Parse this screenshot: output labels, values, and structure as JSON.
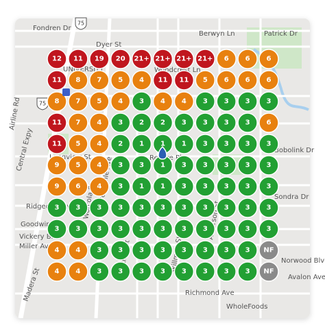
{
  "map": {
    "palette": {
      "r": "#c0161e",
      "o": "#e8810f",
      "g": "#22a033",
      "n": "#8a8a8a"
    },
    "rows": [
      [
        [
          "12",
          "r"
        ],
        [
          "11",
          "r"
        ],
        [
          "19",
          "r"
        ],
        [
          "20",
          "r"
        ],
        [
          "21+",
          "r"
        ],
        [
          "21+",
          "r"
        ],
        [
          "21+",
          "r"
        ],
        [
          "21+",
          "r"
        ],
        [
          "6",
          "o"
        ],
        [
          "6",
          "o"
        ],
        [
          "6",
          "o"
        ]
      ],
      [
        [
          "11",
          "r"
        ],
        [
          "8",
          "o"
        ],
        [
          "7",
          "o"
        ],
        [
          "5",
          "o"
        ],
        [
          "4",
          "o"
        ],
        [
          "11",
          "r"
        ],
        [
          "11",
          "r"
        ],
        [
          "5",
          "o"
        ],
        [
          "6",
          "o"
        ],
        [
          "6",
          "o"
        ],
        [
          "6",
          "o"
        ]
      ],
      [
        [
          "8",
          "o"
        ],
        [
          "7",
          "o"
        ],
        [
          "5",
          "o"
        ],
        [
          "4",
          "o"
        ],
        [
          "3",
          "g"
        ],
        [
          "4",
          "o"
        ],
        [
          "4",
          "o"
        ],
        [
          "3",
          "g"
        ],
        [
          "3",
          "g"
        ],
        [
          "3",
          "g"
        ],
        [
          "3",
          "g"
        ]
      ],
      [
        [
          "11",
          "r"
        ],
        [
          "7",
          "o"
        ],
        [
          "4",
          "o"
        ],
        [
          "3",
          "g"
        ],
        [
          "2",
          "g"
        ],
        [
          "2",
          "g"
        ],
        [
          "3",
          "g"
        ],
        [
          "3",
          "g"
        ],
        [
          "3",
          "g"
        ],
        [
          "3",
          "g"
        ],
        [
          "6",
          "o"
        ]
      ],
      [
        [
          "11",
          "r"
        ],
        [
          "5",
          "o"
        ],
        [
          "4",
          "o"
        ],
        [
          "2",
          "g"
        ],
        [
          "1",
          "g"
        ],
        [
          "1",
          "g"
        ],
        [
          "1",
          "g"
        ],
        [
          "3",
          "g"
        ],
        [
          "3",
          "g"
        ],
        [
          "3",
          "g"
        ],
        [
          "3",
          "g"
        ]
      ],
      [
        [
          "9",
          "o"
        ],
        [
          "5",
          "o"
        ],
        [
          "4",
          "o"
        ],
        [
          "3",
          "g"
        ],
        [
          "3",
          "g"
        ],
        [
          "1",
          "g"
        ],
        [
          "3",
          "g"
        ],
        [
          "3",
          "g"
        ],
        [
          "3",
          "g"
        ],
        [
          "3",
          "g"
        ],
        [
          "3",
          "g"
        ]
      ],
      [
        [
          "9",
          "o"
        ],
        [
          "6",
          "o"
        ],
        [
          "4",
          "o"
        ],
        [
          "3",
          "g"
        ],
        [
          "1",
          "g"
        ],
        [
          "1",
          "g"
        ],
        [
          "3",
          "g"
        ],
        [
          "3",
          "g"
        ],
        [
          "3",
          "g"
        ],
        [
          "3",
          "g"
        ],
        [
          "3",
          "g"
        ]
      ],
      [
        [
          "3",
          "g"
        ],
        [
          "3",
          "g"
        ],
        [
          "3",
          "g"
        ],
        [
          "3",
          "g"
        ],
        [
          "3",
          "g"
        ],
        [
          "3",
          "g"
        ],
        [
          "3",
          "g"
        ],
        [
          "3",
          "g"
        ],
        [
          "3",
          "g"
        ],
        [
          "3",
          "g"
        ],
        [
          "3",
          "g"
        ]
      ],
      [
        [
          "3",
          "g"
        ],
        [
          "3",
          "g"
        ],
        [
          "3",
          "g"
        ],
        [
          "3",
          "g"
        ],
        [
          "3",
          "g"
        ],
        [
          "3",
          "g"
        ],
        [
          "3",
          "g"
        ],
        [
          "3",
          "g"
        ],
        [
          "3",
          "g"
        ],
        [
          "3",
          "g"
        ],
        [
          "3",
          "g"
        ]
      ],
      [
        [
          "4",
          "o"
        ],
        [
          "4",
          "o"
        ],
        [
          "3",
          "g"
        ],
        [
          "3",
          "g"
        ],
        [
          "3",
          "g"
        ],
        [
          "3",
          "g"
        ],
        [
          "3",
          "g"
        ],
        [
          "3",
          "g"
        ],
        [
          "3",
          "g"
        ],
        [
          "3",
          "g"
        ],
        [
          "NF",
          "n"
        ]
      ],
      [
        [
          "4",
          "o"
        ],
        [
          "4",
          "o"
        ],
        [
          "3",
          "g"
        ],
        [
          "3",
          "g"
        ],
        [
          "3",
          "g"
        ],
        [
          "3",
          "g"
        ],
        [
          "3",
          "g"
        ],
        [
          "3",
          "g"
        ],
        [
          "3",
          "g"
        ],
        [
          "3",
          "g"
        ],
        [
          "NF",
          "n"
        ]
      ]
    ],
    "streets": [
      "Fondren Dr",
      "Dyer St",
      "Berwyn Ln",
      "Patrick Dr",
      "UNIVERSITY",
      "Airline Rd",
      "Central Expy",
      "Longview St",
      "Ridgedale Ave",
      "Goodwin Ave",
      "Vickery Blvd",
      "Miller Ave",
      "Madera St",
      "Greenville Ave",
      "Worcola St",
      "Matilda St",
      "Richmond Ave",
      "WholeFoods",
      "Skillman St",
      "Sondra Dr",
      "Bobolink Dr",
      "Avalon Ave",
      "Norwood Blvd",
      "Alderson St",
      "Revere Pl",
      "Woodcrest Ln"
    ],
    "shields": [
      "75",
      "75"
    ]
  }
}
